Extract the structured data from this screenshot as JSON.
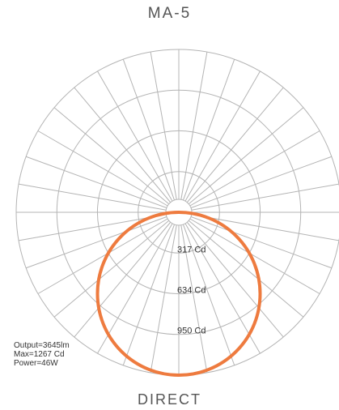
{
  "chart_data": {
    "type": "polar",
    "title": "MA-5",
    "subtitle": "DIRECT",
    "radial_unit": "Cd",
    "radial_max": 1267,
    "radial_ring_labels": [
      "317 Cd",
      "634 Cd",
      "950 Cd"
    ],
    "radial_ring_values": [
      317,
      634,
      950,
      1267
    ],
    "angular_step_deg": 10,
    "angle_convention": "0 = straight down (nadir), 90 = horizontal, 180 = straight up",
    "series": [
      {
        "color": "#ee7b3f",
        "angles_deg": [
          0,
          10,
          20,
          30,
          40,
          50,
          60,
          70,
          80,
          90
        ],
        "values": [
          1267,
          1248,
          1191,
          1097,
          971,
          814,
          634,
          433,
          220,
          0
        ]
      }
    ],
    "grid": true
  },
  "stats": {
    "output": "Output=3645lm",
    "max": "Max=1267 Cd",
    "power": "Power=46W"
  },
  "colors": {
    "grid": "#b4b4b4",
    "curve": "#ee7b3f",
    "text": "#555555"
  }
}
